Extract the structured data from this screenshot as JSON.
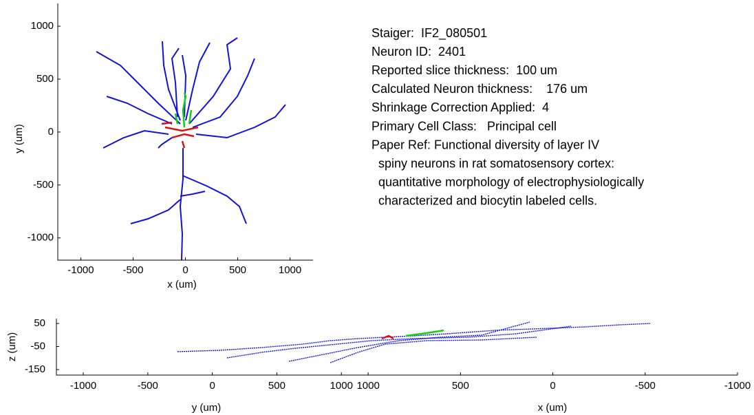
{
  "info": {
    "lines": [
      "Staiger:  IF2_080501",
      "Neuron ID:  2401",
      "Reported slice thickness:  100 um",
      "Calculated Neuron thickness:    176 um",
      "Shrinkage Correction Applied:  4",
      "Primary Cell Class:   Principal cell",
      "Paper Ref: Functional diversity of layer IV",
      "  spiny neurons in rat somatosensory cortex:",
      "  quantitative morphology of electrophysiologically",
      "  characterized and biocytin labeled cells."
    ]
  },
  "top_plot": {
    "xlabel": "x (um)",
    "ylabel": "y (um)",
    "xlim": [
      -1220,
      1220
    ],
    "ylim": [
      -1210,
      1215
    ],
    "xticks": [
      -1000,
      -500,
      0,
      500,
      1000
    ],
    "yticks": [
      1000,
      500,
      0,
      -500,
      -1000
    ]
  },
  "bottom_plot": {
    "ylabel": "z (um)",
    "ylim": [
      -174,
      71
    ],
    "yticks": [
      50,
      -50,
      -150
    ],
    "left": {
      "xlabel": "y (um)",
      "xlim": [
        -1208,
        1100
      ],
      "xticks": [
        -1000,
        -500,
        0,
        500,
        1000
      ]
    },
    "right": {
      "xlabel": "x (um)",
      "xlim": [
        1075,
        -1000
      ],
      "xticks": [
        1000,
        500,
        0,
        -500,
        -1000
      ]
    }
  }
}
